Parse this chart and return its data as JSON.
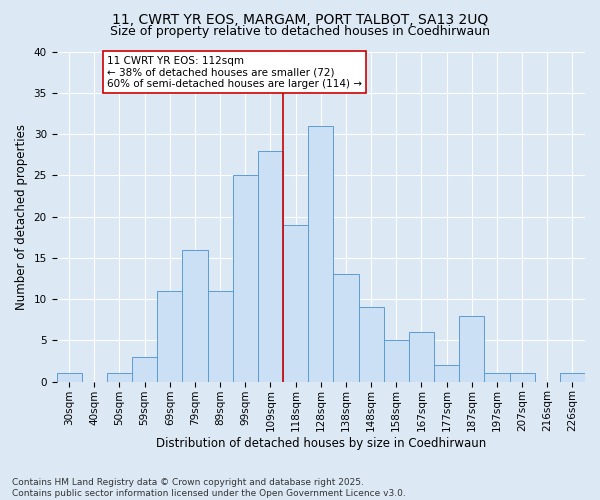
{
  "title1": "11, CWRT YR EOS, MARGAM, PORT TALBOT, SA13 2UQ",
  "title2": "Size of property relative to detached houses in Coedhirwaun",
  "xlabel": "Distribution of detached houses by size in Coedhirwaun",
  "ylabel": "Number of detached properties",
  "categories": [
    "30sqm",
    "40sqm",
    "50sqm",
    "59sqm",
    "69sqm",
    "79sqm",
    "89sqm",
    "99sqm",
    "109sqm",
    "118sqm",
    "128sqm",
    "138sqm",
    "148sqm",
    "158sqm",
    "167sqm",
    "177sqm",
    "187sqm",
    "197sqm",
    "207sqm",
    "216sqm",
    "226sqm"
  ],
  "values": [
    1,
    0,
    1,
    3,
    11,
    16,
    11,
    25,
    28,
    19,
    31,
    13,
    9,
    5,
    6,
    2,
    8,
    1,
    1,
    0,
    1
  ],
  "bar_color": "#cce0f5",
  "bar_edge_color": "#5b9bd5",
  "bar_width": 1.0,
  "vline_x": 8.5,
  "vline_color": "#cc0000",
  "annotation_text": "11 CWRT YR EOS: 112sqm\n← 38% of detached houses are smaller (72)\n60% of semi-detached houses are larger (114) →",
  "annotation_box_color": "#ffffff",
  "annotation_box_edge": "#cc0000",
  "ylim": [
    0,
    40
  ],
  "yticks": [
    0,
    5,
    10,
    15,
    20,
    25,
    30,
    35,
    40
  ],
  "background_color": "#dce9f5",
  "plot_bg_color": "#dce9f5",
  "footer_text": "Contains HM Land Registry data © Crown copyright and database right 2025.\nContains public sector information licensed under the Open Government Licence v3.0.",
  "title_fontsize": 10,
  "subtitle_fontsize": 9,
  "axis_label_fontsize": 8.5,
  "tick_fontsize": 7.5,
  "annotation_fontsize": 7.5,
  "footer_fontsize": 6.5
}
